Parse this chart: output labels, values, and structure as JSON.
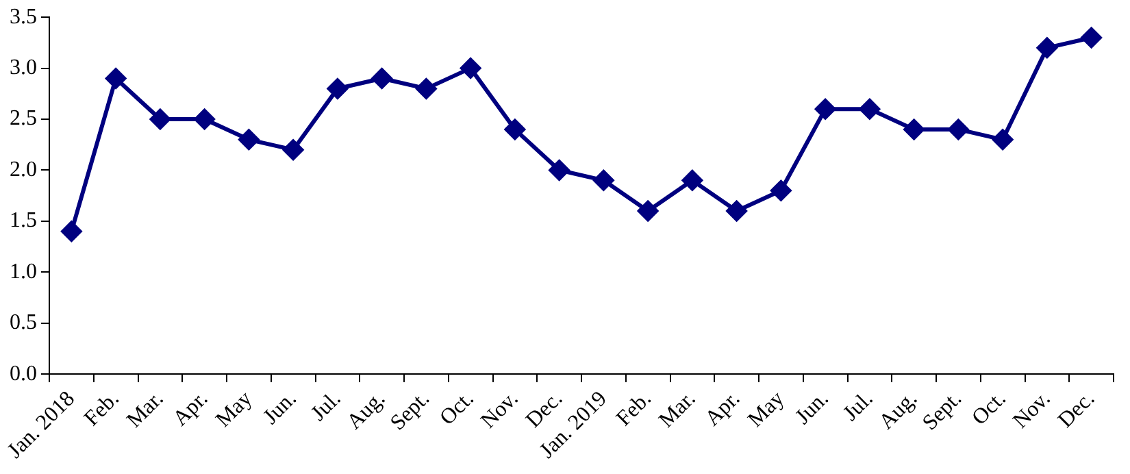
{
  "chart_data": {
    "type": "line",
    "categories": [
      "Jan. 2018",
      "Feb.",
      "Mar.",
      "Apr.",
      "May",
      "Jun.",
      "Jul.",
      "Aug.",
      "Sept.",
      "Oct.",
      "Nov.",
      "Dec.",
      "Jan. 2019",
      "Feb.",
      "Mar.",
      "Apr.",
      "May",
      "Jun.",
      "Jul.",
      "Aug.",
      "Sept.",
      "Oct.",
      "Nov.",
      "Dec."
    ],
    "series": [
      {
        "color": "#00007f",
        "values": [
          1.4,
          2.9,
          2.5,
          2.5,
          2.3,
          2.2,
          2.8,
          2.9,
          2.8,
          3.0,
          2.4,
          2.0,
          1.9,
          1.6,
          1.9,
          1.6,
          1.8,
          2.6,
          2.6,
          2.4,
          2.4,
          2.3,
          3.2,
          3.3
        ]
      }
    ],
    "ylim": [
      0,
      3.5
    ],
    "yticks": [
      {
        "value": 0,
        "label": "0.0"
      },
      0.5,
      {
        "value": 1,
        "label": "1.0"
      },
      1.5,
      {
        "value": 2,
        "label": "2.0"
      },
      2.5,
      {
        "value": 3,
        "label": "3.0"
      },
      3.5
    ],
    "grid": false,
    "legend": false,
    "marker": "diamond",
    "line_style": "solid"
  }
}
